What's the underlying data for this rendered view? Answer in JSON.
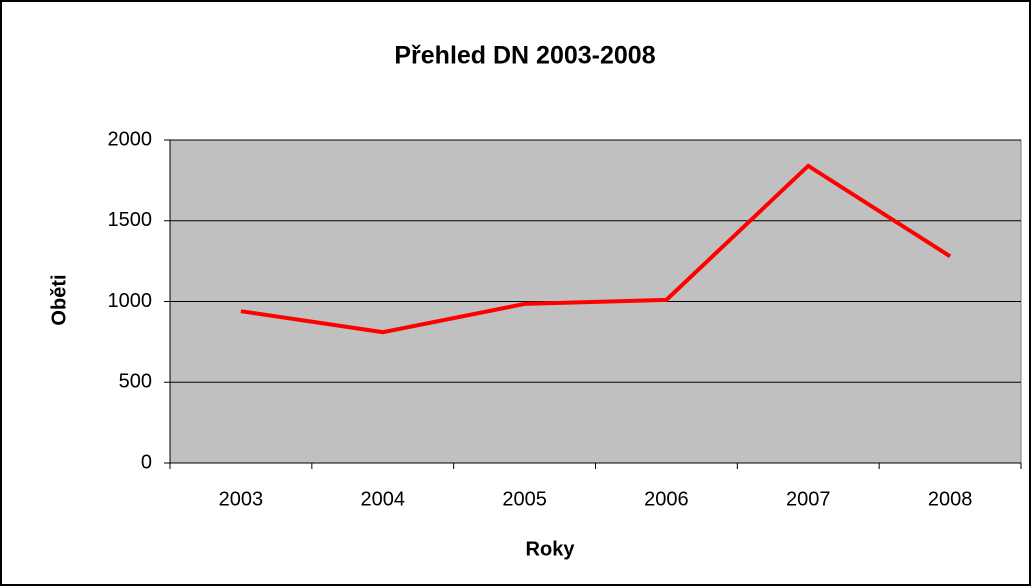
{
  "chart_data": {
    "type": "line",
    "title": "Přehled DN 2003-2008",
    "x_label": "Roky",
    "y_label": "Oběti",
    "categories": [
      "2003",
      "2004",
      "2005",
      "2006",
      "2007",
      "2008"
    ],
    "series": [
      {
        "name": "Oběti",
        "color": "#ff0000",
        "values": [
          940,
          810,
          985,
          1010,
          1840,
          1280
        ]
      }
    ],
    "ylim": [
      0,
      2000
    ],
    "yticks": [
      0,
      500,
      1000,
      1500,
      2000
    ],
    "grid": true
  }
}
